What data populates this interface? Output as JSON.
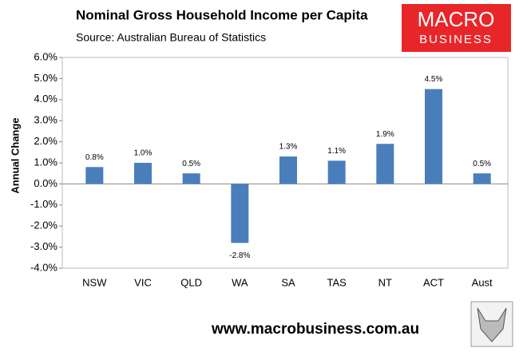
{
  "chart_data": {
    "type": "bar",
    "title": "Nominal Gross Household Income per Capita",
    "subtitle": "Source: Australian Bureau of Statistics",
    "y_label": "Annual Change",
    "categories": [
      "NSW",
      "VIC",
      "QLD",
      "WA",
      "SA",
      "TAS",
      "NT",
      "ACT",
      "Aust"
    ],
    "values": [
      0.8,
      1.0,
      0.5,
      -2.8,
      1.3,
      1.1,
      1.9,
      4.5,
      0.5
    ],
    "value_labels": [
      "0.8%",
      "1.0%",
      "0.5%",
      "-2.8%",
      "1.3%",
      "1.1%",
      "1.9%",
      "4.5%",
      "0.5%"
    ],
    "color": "#4a7ebb",
    "ylim": [
      -4,
      6
    ],
    "yticks": [
      {
        "value": -4,
        "label": "-4.0%"
      },
      {
        "value": -3,
        "label": "-3.0%"
      },
      {
        "value": -2,
        "label": "-2.0%"
      },
      {
        "value": -1,
        "label": "-1.0%"
      },
      {
        "value": 0,
        "label": "0.0%"
      },
      {
        "value": 1,
        "label": "1.0%"
      },
      {
        "value": 2,
        "label": "2.0%"
      },
      {
        "value": 3,
        "label": "3.0%"
      },
      {
        "value": 4,
        "label": "4.0%"
      },
      {
        "value": 5,
        "label": "5.0%"
      },
      {
        "value": 6,
        "label": "6.0%"
      }
    ],
    "grid": false
  },
  "logo": {
    "line1": "MACRO",
    "line2": "BUSINESS"
  },
  "footer": "www.macrobusiness.com.au"
}
